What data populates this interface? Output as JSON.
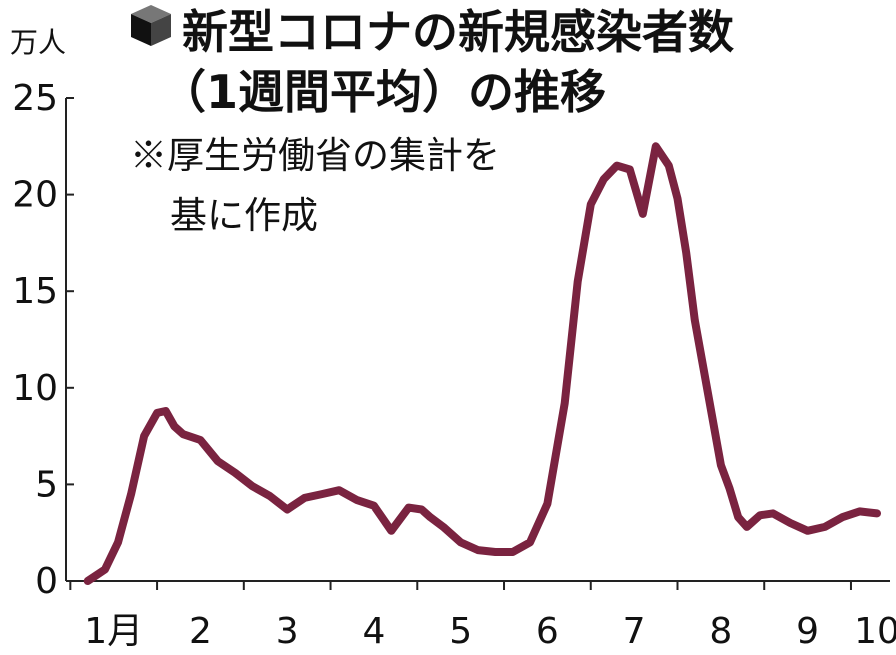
{
  "chart_data": {
    "type": "line",
    "title_line1": "新型コロナの新規感染者数",
    "title_line2": "（1週間平均）の推移",
    "note_line1": "※厚生労働省の集計を",
    "note_line2": "基に作成",
    "y_unit": "万人",
    "ylim": [
      0,
      25
    ],
    "yticks": [
      0,
      5,
      10,
      15,
      20,
      25
    ],
    "xlim": [
      0.95,
      10.45
    ],
    "xticks": [
      {
        "value": 1.5,
        "label": "1月"
      },
      {
        "value": 2.5,
        "label": "2"
      },
      {
        "value": 3.5,
        "label": "3"
      },
      {
        "value": 4.5,
        "label": "4"
      },
      {
        "value": 5.5,
        "label": "5"
      },
      {
        "value": 6.5,
        "label": "6"
      },
      {
        "value": 7.5,
        "label": "7"
      },
      {
        "value": 8.5,
        "label": "8"
      },
      {
        "value": 9.5,
        "label": "9"
      },
      {
        "value": 10.3,
        "label": "10"
      }
    ],
    "line_color": "#7a2340",
    "series": [
      {
        "x": [
          1.2,
          1.4,
          1.55,
          1.7,
          1.85,
          2.0,
          2.1,
          2.2,
          2.3,
          2.5,
          2.7,
          2.9,
          3.1,
          3.3,
          3.5,
          3.7,
          3.9,
          4.1,
          4.3,
          4.5,
          4.7,
          4.9,
          5.05,
          5.15,
          5.3,
          5.5,
          5.7,
          5.9,
          6.1,
          6.3,
          6.5,
          6.7,
          6.85,
          7.0,
          7.15,
          7.3,
          7.45,
          7.6,
          7.75,
          7.9,
          8.0,
          8.1,
          8.2,
          8.3,
          8.4,
          8.5,
          8.6,
          8.7,
          8.8,
          8.95,
          9.1,
          9.3,
          9.5,
          9.7,
          9.9,
          10.1,
          10.3
        ],
        "y": [
          0.0,
          0.6,
          2.0,
          4.5,
          7.5,
          8.7,
          8.8,
          8.0,
          7.6,
          7.3,
          6.2,
          5.6,
          4.9,
          4.4,
          3.7,
          4.3,
          4.5,
          4.7,
          4.2,
          3.9,
          2.6,
          3.8,
          3.7,
          3.3,
          2.8,
          2.0,
          1.6,
          1.5,
          1.5,
          2.0,
          4.0,
          9.2,
          15.5,
          19.5,
          20.8,
          21.5,
          21.3,
          19.0,
          22.5,
          21.5,
          19.8,
          17.0,
          13.5,
          11.0,
          8.5,
          6.0,
          4.8,
          3.3,
          2.8,
          3.4,
          3.5,
          3.0,
          2.6,
          2.8,
          3.3,
          3.6,
          3.5
        ]
      }
    ]
  },
  "colors": {
    "icon_top": "#777777",
    "icon_left": "#111111",
    "icon_right": "#444444"
  }
}
